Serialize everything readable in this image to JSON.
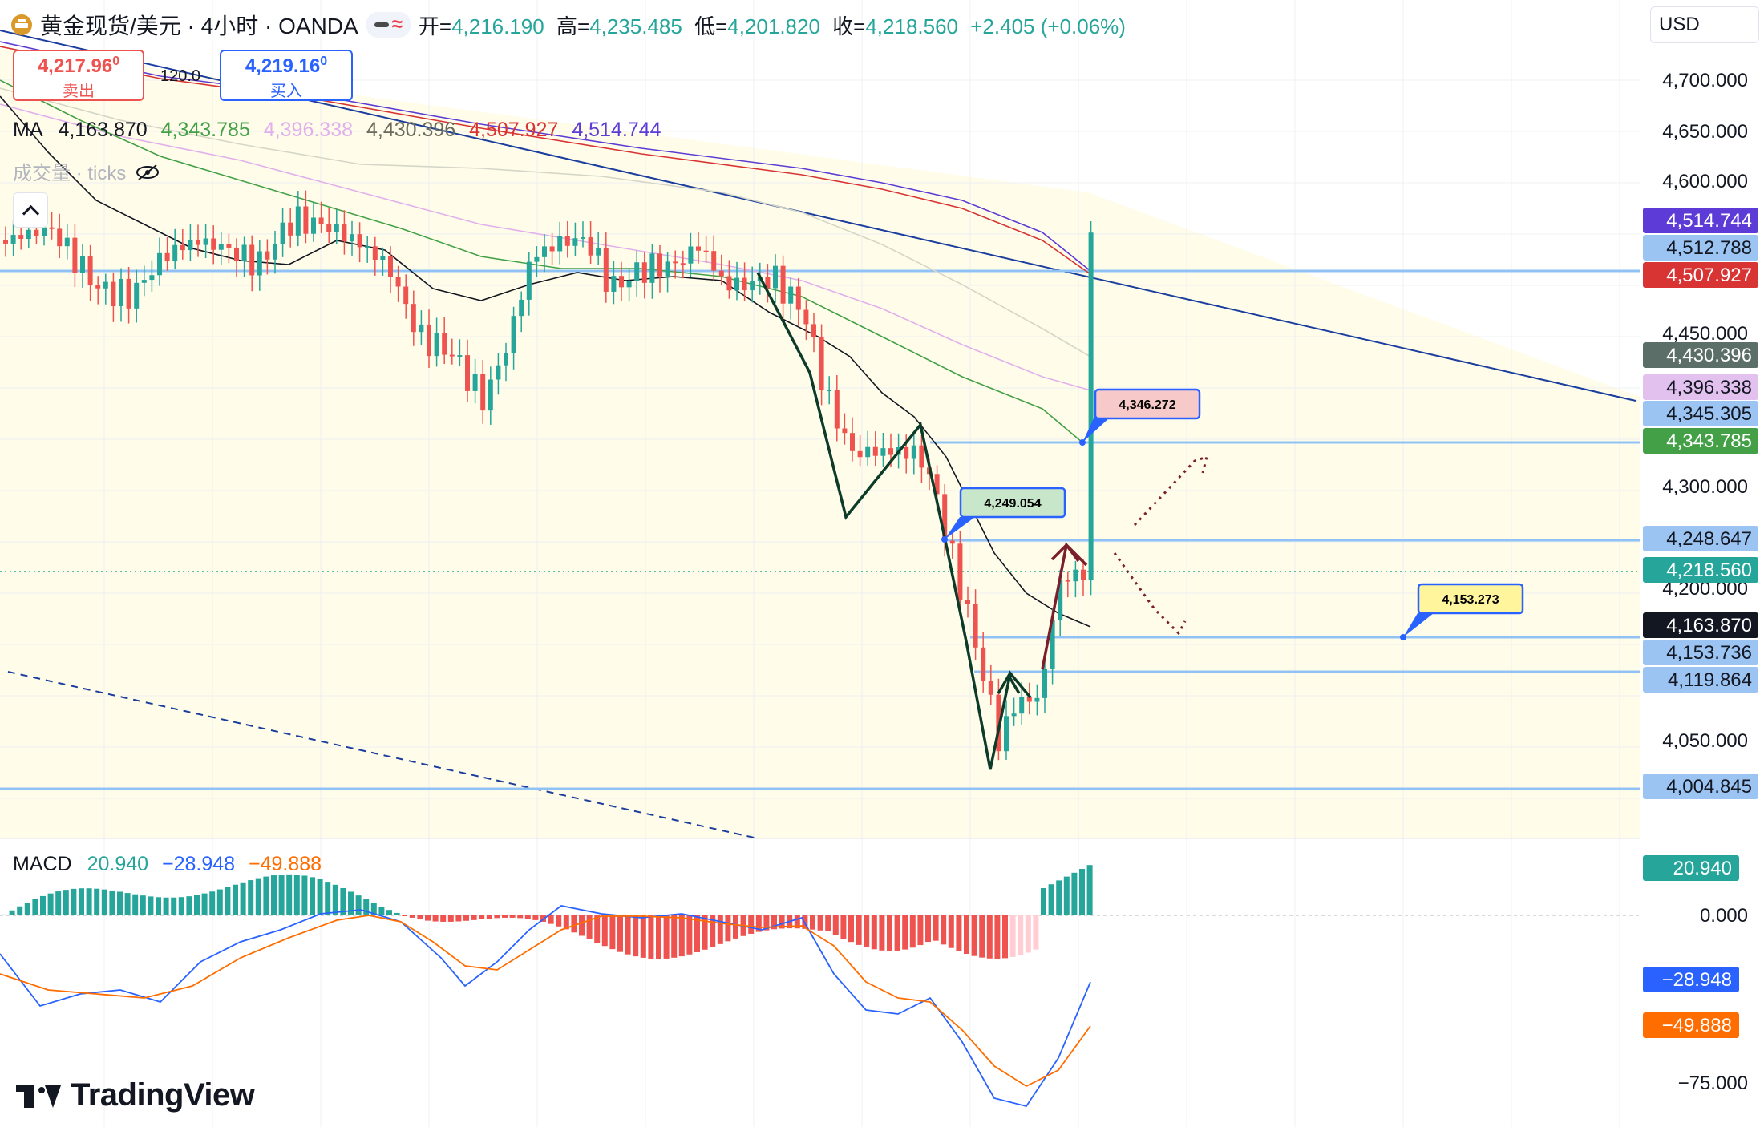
{
  "header": {
    "symbol_title": "黄金现货/美元 · 4小时 · OANDA",
    "ohlc": {
      "open_label": "开=",
      "open": "4,216.190",
      "high_label": "高=",
      "high": "4,235.485",
      "low_label": "低=",
      "low": "4,201.820",
      "close_label": "收=",
      "close": "4,218.560",
      "change": "+2.405 (+0.06%)"
    },
    "currency": "USD",
    "icons": [
      "gold-logo-icon",
      "minus-icon",
      "wave-icon"
    ]
  },
  "trade": {
    "sell_price_main": "4,217.96",
    "sell_price_sup": "0",
    "sell_label": "卖出",
    "spread": "120.0",
    "buy_price_main": "4,219.16",
    "buy_price_sup": "0",
    "buy_label": "买入"
  },
  "ma_legend": {
    "label": "MA",
    "values": [
      "4,163.870",
      "4,343.785",
      "4,396.338",
      "4,430.396",
      "4,507.927",
      "4,514.744"
    ]
  },
  "volume_legend": {
    "label": "成交量 · ticks"
  },
  "macd_legend": {
    "label": "MACD",
    "hist": "20.940",
    "macd": "−28.948",
    "signal": "−49.888"
  },
  "price_axis": {
    "ticks": [
      "4,700.000",
      "4,650.000",
      "4,600.000",
      "4,450.000",
      "4,300.000",
      "4,200.000",
      "4,050.000"
    ],
    "badges": [
      {
        "value": "4,514.744",
        "color": "#5d3bd6"
      },
      {
        "value": "4,512.788",
        "color": "#9cc4f2"
      },
      {
        "value": "4,507.927",
        "color": "#d83434"
      },
      {
        "value": "4,430.396",
        "color": "#5c6e68"
      },
      {
        "value": "4,396.338",
        "color": "#e3c1ef"
      },
      {
        "value": "4,345.305",
        "color": "#9cc4f2"
      },
      {
        "value": "4,343.785",
        "color": "#43a047"
      },
      {
        "value": "4,248.647",
        "color": "#9cc4f2"
      },
      {
        "value": "4,218.560",
        "color": "#26a69a"
      },
      {
        "value": "4,163.870",
        "color": "#131722"
      },
      {
        "value": "4,153.736",
        "color": "#9cc4f2"
      },
      {
        "value": "4,119.864",
        "color": "#9cc4f2"
      },
      {
        "value": "4,004.845",
        "color": "#9cc4f2"
      }
    ]
  },
  "macd_axis": {
    "ticks": [
      "0.000",
      "−75.000"
    ],
    "badges": [
      {
        "value": "20.940",
        "color": "#26a69a"
      },
      {
        "value": "−28.948",
        "color": "#2962ff"
      },
      {
        "value": "−49.888",
        "color": "#ff6d00"
      }
    ]
  },
  "callouts": [
    {
      "value": "4,346.272",
      "bg": "#f8c9c9"
    },
    {
      "value": "4,249.054",
      "bg": "#c8e6c9"
    },
    {
      "value": "4,153.273",
      "bg": "#fff59d"
    }
  ],
  "brand": {
    "name": "TradingView"
  },
  "colors": {
    "up": "#26a69a",
    "down": "#ef5350",
    "ma1": "#131722",
    "ma2": "#43a047",
    "ma3": "#e1b0ec",
    "ma4": "#d6d6c8",
    "ma5": "#d83434",
    "ma6": "#5d3bd6",
    "hline": "#90c2f5",
    "macd": "#2962ff",
    "signal": "#ff6d00"
  },
  "chart_data": {
    "type": "candlestick",
    "interval": "4h",
    "y_unit": "USD",
    "last_candle": {
      "open": 4216.19,
      "high": 4235.485,
      "low": 4201.82,
      "close": 4218.56
    },
    "ma_values": [
      4163.87,
      4343.785,
      4396.338,
      4430.396,
      4507.927,
      4514.744
    ],
    "horizontal_levels": [
      4512.788,
      4345.305,
      4248.647,
      4153.736,
      4119.864,
      4004.845
    ],
    "annotated_points": [
      4346.272,
      4249.054,
      4153.273
    ],
    "macd": {
      "hist": 20.94,
      "macd": -28.948,
      "signal": -49.888
    }
  }
}
